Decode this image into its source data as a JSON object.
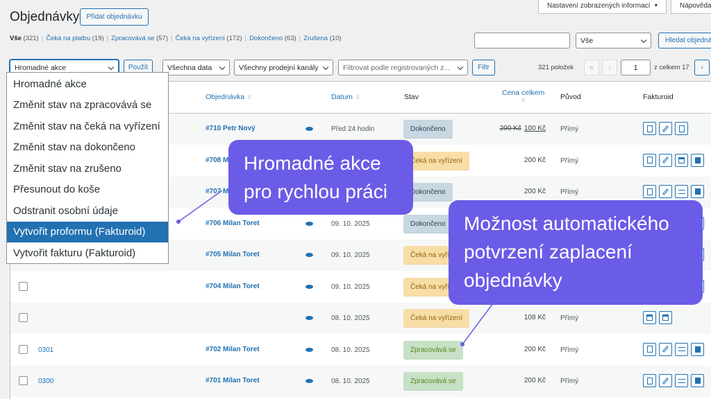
{
  "header": {
    "title": "Objednávky",
    "add_button": "Přidat objednávku"
  },
  "top_buttons": [
    "Nastavení zobrazených informací",
    "Nápověda"
  ],
  "status_filters": [
    {
      "label": "Vše",
      "count": "(321)"
    },
    {
      "label": "Čeká na platbu",
      "count": "(19)"
    },
    {
      "label": "Zpracovává se",
      "count": "(57)"
    },
    {
      "label": "Čeká na vyřízení",
      "count": "(172)"
    },
    {
      "label": "Dokončeno",
      "count": "(63)"
    },
    {
      "label": "Zrušena",
      "count": "(10)"
    }
  ],
  "search": {
    "scope": "Vše",
    "button": "Hledat objednávky"
  },
  "toolbar": {
    "bulk_action": "Hromadné akce",
    "apply": "Použít",
    "date_filter": "Všechna data",
    "channel_filter": "Všechny prodejní kanály",
    "customer_filter": "Filtrovat podle registrovaných z...",
    "filter_button": "Filtr",
    "items_count": "321 položek",
    "pagination": {
      "first": "«",
      "prev": "‹",
      "current": "1",
      "total": "z celkem 17",
      "next": "›"
    }
  },
  "bulk_menu": [
    "Hromadné akce",
    "Změnit stav na zpracovává se",
    "Změnit stav na čeká na vyřízení",
    "Změnit stav na dokončeno",
    "Změnit stav na zrušeno",
    "Přesunout do koše",
    "Odstranit osobní údaje",
    "Vytvořit proformu (Fakturoid)",
    "Vytvořit fakturu (Fakturoid)"
  ],
  "table": {
    "columns": [
      "Objednávka",
      "Datum",
      "Stav",
      "Cena celkem",
      "Původ",
      "Fakturoid"
    ],
    "rows": [
      {
        "order": "#710 Petr Nový",
        "date": "Před 24 hodin",
        "status": {
          "label": "Dokončeno",
          "bg": "#c8d7e1",
          "fg": "#2e4453"
        },
        "original_total": "200 Kč",
        "total": "100 Kč",
        "origin": "Přímý"
      },
      {
        "order": "#708 M",
        "status": {
          "label": "Čeká na vyřízení",
          "bg": "#f8dda7",
          "fg": "#94660c"
        },
        "total": "200 Kč",
        "origin": "Přímý"
      },
      {
        "order": "#707 M",
        "status": {
          "label": "Dokončeno",
          "bg": "#c8d7e1",
          "fg": "#2e4453"
        },
        "total": "200 Kč",
        "origin": "Přímý"
      },
      {
        "order": "#706 Milan Toret",
        "date": "09. 10. 2025",
        "status": {
          "label": "Dokončeno",
          "bg": "#c8d7e1",
          "fg": "#2e4453"
        }
      },
      {
        "order": "#705 Milan Toret",
        "date": "09. 10. 2025",
        "status": {
          "label": "Čeká na vyřízení",
          "bg": "#f8dda7",
          "fg": "#94660c"
        }
      },
      {
        "order": "#704 Milan Toret",
        "date": "09. 10. 2025",
        "status": {
          "label": "Čeká na vyřízení",
          "bg": "#f8dda7",
          "fg": "#94660c"
        }
      },
      {
        "date": "08. 10. 2025",
        "status": {
          "label": "Čeká na vyřízení",
          "bg": "#f8dda7",
          "fg": "#94660c"
        },
        "total": "108 Kč",
        "origin": "Přímý"
      },
      {
        "invoice": "0301",
        "order": "#702 Milan Toret",
        "date": "08. 10. 2025",
        "status": {
          "label": "Zpracovává se",
          "bg": "#c6e1c6",
          "fg": "#5b841b"
        },
        "total": "200 Kč",
        "origin": "Přímý"
      },
      {
        "invoice": "0300",
        "order": "#701 Milan Toret",
        "date": "08. 10. 2025",
        "status": {
          "label": "Zpracovává se",
          "bg": "#c6e1c6",
          "fg": "#5b841b"
        },
        "total": "200 Kč",
        "origin": "Přímý"
      }
    ]
  },
  "callouts": [
    [
      "Hromadné akce",
      "pro rychlou práci"
    ],
    [
      "Možnost automatického",
      "potvrzení zaplacení",
      "objednávky"
    ]
  ]
}
